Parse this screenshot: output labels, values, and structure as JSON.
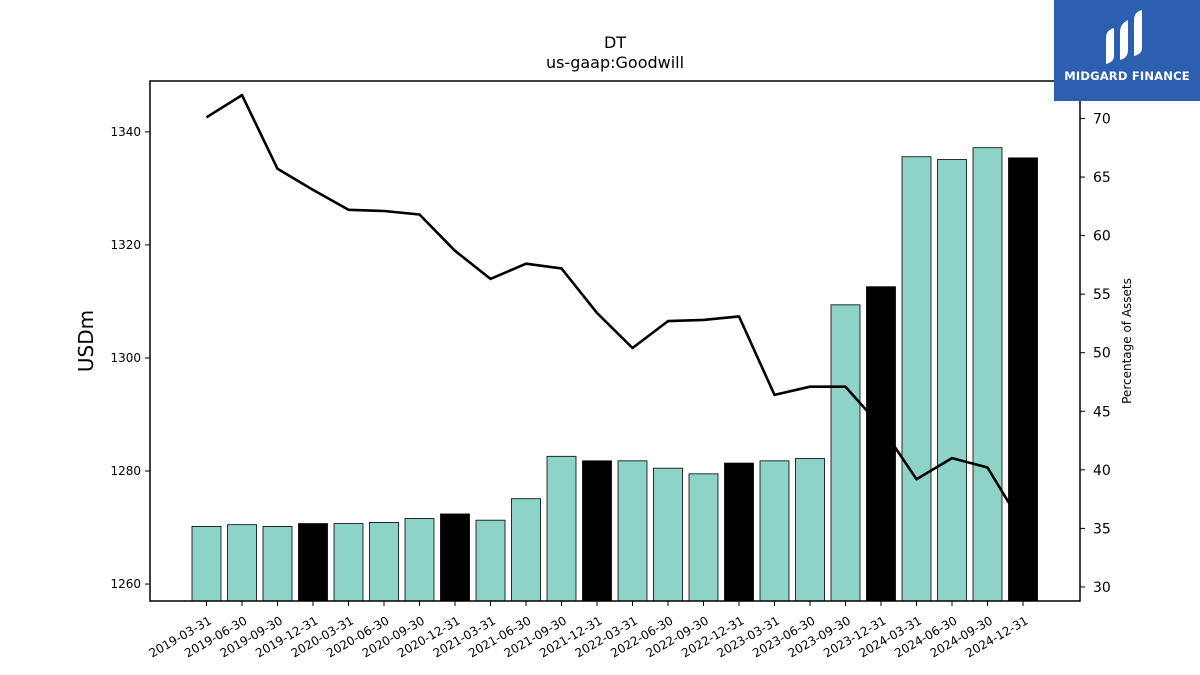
{
  "chart_data": {
    "type": "bar",
    "title": "DT",
    "subtitle": "us-gaap:Goodwill",
    "ylabel": "USDm",
    "y2label": "Percentage of Assets",
    "ylim": [
      1257,
      1349
    ],
    "y2lim": [
      28.8,
      73.2
    ],
    "yticks": [
      1260,
      1280,
      1300,
      1320,
      1340
    ],
    "y2ticks": [
      30,
      35,
      40,
      45,
      50,
      55,
      60,
      65,
      70
    ],
    "categories": [
      "2019-03-31",
      "2019-06-30",
      "2019-09-30",
      "2019-12-31",
      "2020-03-31",
      "2020-06-30",
      "2020-09-30",
      "2020-12-31",
      "2021-03-31",
      "2021-06-30",
      "2021-09-30",
      "2021-12-31",
      "2022-03-31",
      "2022-06-30",
      "2022-09-30",
      "2022-12-31",
      "2023-03-31",
      "2023-06-30",
      "2023-09-30",
      "2023-12-31",
      "2024-03-31",
      "2024-06-30",
      "2024-09-30",
      "2024-12-31"
    ],
    "series": [
      {
        "type": "bar",
        "values": [
          1270.2,
          1270.5,
          1270.2,
          1270.7,
          1270.7,
          1270.9,
          1271.6,
          1272.4,
          1271.3,
          1275.1,
          1282.6,
          1281.8,
          1281.8,
          1280.5,
          1279.5,
          1281.4,
          1281.8,
          1282.2,
          1309.4,
          1312.6,
          1335.6,
          1335.1,
          1337.2,
          1335.4
        ],
        "highlight": [
          false,
          false,
          false,
          true,
          false,
          false,
          false,
          true,
          false,
          false,
          false,
          true,
          false,
          false,
          false,
          true,
          false,
          false,
          false,
          true,
          false,
          false,
          false,
          true
        ],
        "color": "#8dd3c7",
        "highlight_color": "#000000"
      },
      {
        "type": "line",
        "axis": "right",
        "values": [
          70.1,
          72.0,
          65.7,
          63.9,
          62.2,
          62.1,
          61.8,
          58.7,
          56.3,
          57.6,
          57.2,
          53.4,
          50.4,
          52.7,
          52.8,
          53.1,
          46.4,
          47.1,
          47.1,
          43.7,
          39.2,
          41.0,
          40.2,
          35.2
        ],
        "color": "#000000"
      }
    ]
  },
  "logo": {
    "text": "MIDGARD FINANCE",
    "background": "#2d5fb0"
  }
}
